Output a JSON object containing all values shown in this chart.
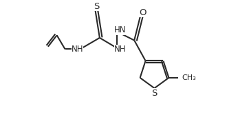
{
  "bg_color": "#ffffff",
  "line_color": "#2a2a2a",
  "line_width": 1.5,
  "font_size": 8.5,
  "figsize": [
    3.3,
    1.83
  ],
  "dpi": 100,
  "xlim": [
    -0.05,
    1.02
  ],
  "ylim": [
    0.0,
    1.0
  ]
}
